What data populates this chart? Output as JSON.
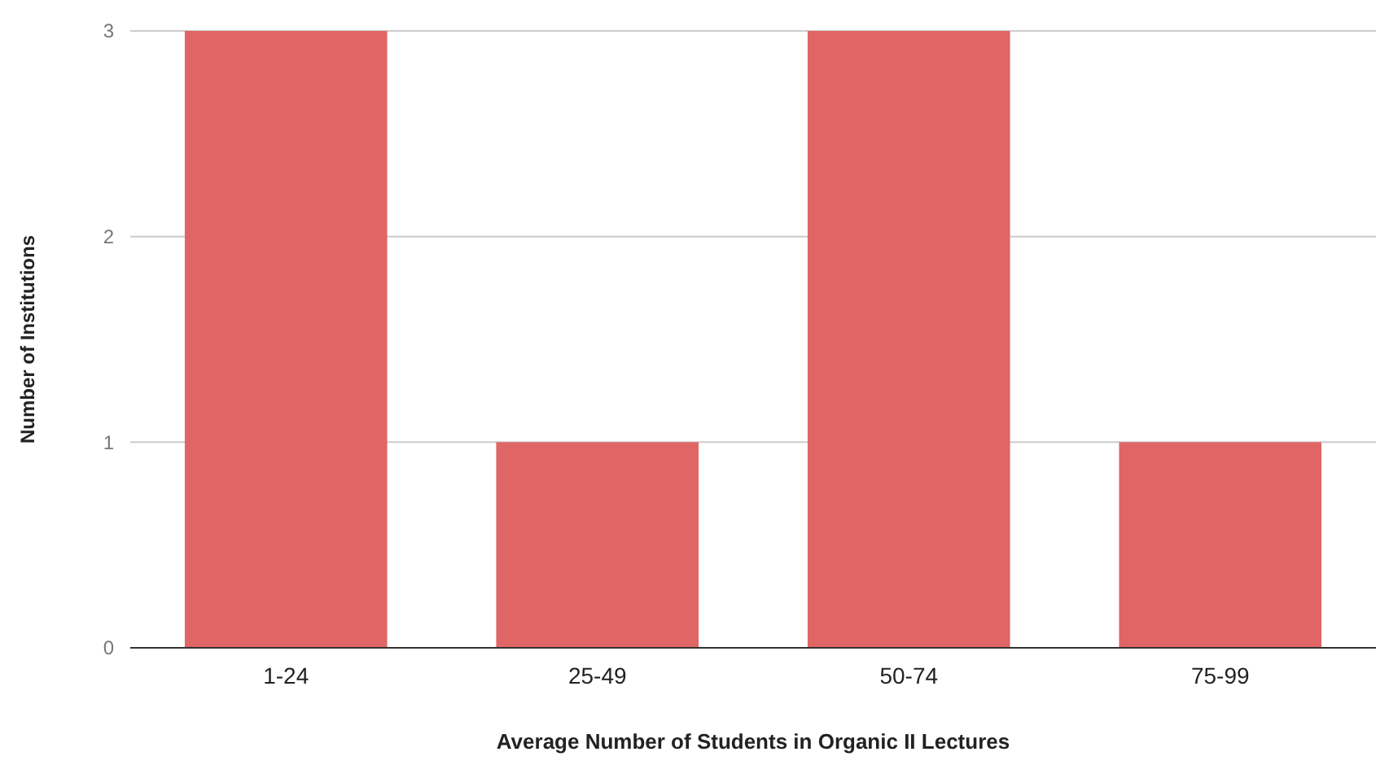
{
  "chart_data": {
    "type": "bar",
    "xlabel": "Average Number of Students in Organic II Lectures",
    "ylabel": "Number of Institutions",
    "categories": [
      "1-24",
      "25-49",
      "50-74",
      "75-99"
    ],
    "values": [
      3,
      1,
      3,
      1
    ],
    "color": "#e06666",
    "ylim": [
      0,
      3
    ],
    "yticks": [
      0,
      1,
      2,
      3
    ],
    "grid": "y"
  }
}
